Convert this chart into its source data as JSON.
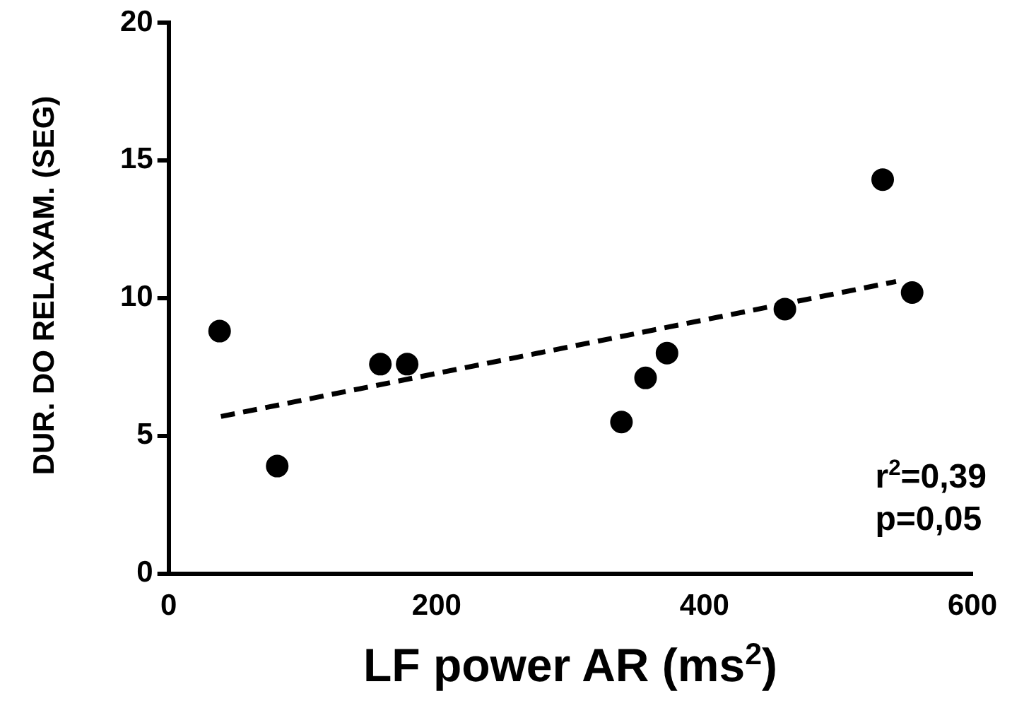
{
  "chart_data": {
    "type": "scatter",
    "xlabel": "LF power AR (ms$^{2}$)",
    "ylabel": "DUR. DO RELAXAM. (SEG)",
    "series": [
      {
        "color": "#000000",
        "marker": "circle",
        "x": [
          38,
          81,
          158,
          178,
          338,
          356,
          372,
          460,
          533,
          555
        ],
        "values": [
          8.8,
          3.9,
          7.6,
          7.6,
          5.5,
          7.1,
          8.0,
          9.6,
          14.3,
          10.2
        ]
      },
      {
        "type": "line",
        "color": "#000000",
        "line_style": "dashed",
        "marker": "none",
        "x": [
          39,
          543
        ],
        "values": [
          5.7,
          10.6
        ]
      }
    ],
    "xlim": [
      0,
      600
    ],
    "xticks": [
      0,
      200,
      400,
      600
    ],
    "ylim": [
      0,
      20
    ],
    "yticks": [
      0,
      5,
      10,
      15,
      20
    ],
    "grid": false,
    "legend": false,
    "annotations": [
      "r$^{2}$=0,39",
      "p=0,05"
    ]
  }
}
